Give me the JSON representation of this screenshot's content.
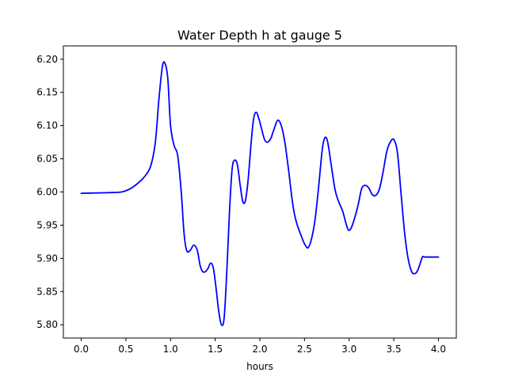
{
  "chart_data": {
    "type": "line",
    "title": "Water Depth h at gauge 5",
    "xlabel": "hours",
    "ylabel": "",
    "xlim": [
      -0.2,
      4.2
    ],
    "ylim": [
      5.78,
      6.22
    ],
    "xticks": [
      0.0,
      0.5,
      1.0,
      1.5,
      2.0,
      2.5,
      3.0,
      3.5,
      4.0
    ],
    "xtick_labels": [
      "0.0",
      "0.5",
      "1.0",
      "1.5",
      "2.0",
      "2.5",
      "3.0",
      "3.5",
      "4.0"
    ],
    "yticks": [
      5.8,
      5.85,
      5.9,
      5.95,
      6.0,
      6.05,
      6.1,
      6.15,
      6.2
    ],
    "ytick_labels": [
      "5.80",
      "5.85",
      "5.90",
      "5.95",
      "6.00",
      "6.05",
      "6.10",
      "6.15",
      "6.20"
    ],
    "grid": false,
    "series": [
      {
        "color": "#0000ff",
        "x": [
          0.0,
          0.3,
          0.45,
          0.55,
          0.65,
          0.72,
          0.78,
          0.83,
          0.87,
          0.91,
          0.94,
          0.97,
          1.0,
          1.04,
          1.08,
          1.12,
          1.15,
          1.18,
          1.22,
          1.26,
          1.3,
          1.33,
          1.36,
          1.39,
          1.42,
          1.45,
          1.48,
          1.51,
          1.54,
          1.57,
          1.6,
          1.63,
          1.66,
          1.69,
          1.72,
          1.75,
          1.78,
          1.81,
          1.84,
          1.87,
          1.9,
          1.93,
          1.96,
          1.99,
          2.02,
          2.05,
          2.08,
          2.12,
          2.16,
          2.2,
          2.24,
          2.28,
          2.32,
          2.36,
          2.39,
          2.42,
          2.46,
          2.5,
          2.54,
          2.58,
          2.62,
          2.66,
          2.7,
          2.73,
          2.76,
          2.8,
          2.84,
          2.87,
          2.9,
          2.93,
          2.96,
          2.99,
          3.02,
          3.06,
          3.1,
          3.14,
          3.18,
          3.22,
          3.26,
          3.3,
          3.34,
          3.38,
          3.42,
          3.46,
          3.5,
          3.54,
          3.58,
          3.62,
          3.66,
          3.7,
          3.73,
          3.76,
          3.79,
          3.82,
          3.85,
          3.88,
          3.91,
          3.94,
          3.97,
          4.0
        ],
        "y": [
          5.998,
          5.999,
          6.0,
          6.005,
          6.015,
          6.025,
          6.04,
          6.075,
          6.14,
          6.19,
          6.193,
          6.17,
          6.1,
          6.07,
          6.055,
          6.0,
          5.94,
          5.912,
          5.912,
          5.92,
          5.912,
          5.89,
          5.88,
          5.88,
          5.885,
          5.893,
          5.885,
          5.855,
          5.82,
          5.8,
          5.81,
          5.88,
          5.97,
          6.035,
          6.048,
          6.04,
          6.01,
          5.985,
          5.988,
          6.02,
          6.07,
          6.11,
          6.12,
          6.11,
          6.095,
          6.08,
          6.075,
          6.08,
          6.095,
          6.108,
          6.1,
          6.075,
          6.035,
          5.99,
          5.965,
          5.95,
          5.935,
          5.922,
          5.916,
          5.93,
          5.96,
          6.01,
          6.065,
          6.082,
          6.075,
          6.04,
          6.005,
          5.99,
          5.98,
          5.97,
          5.955,
          5.943,
          5.945,
          5.96,
          5.98,
          6.005,
          6.01,
          6.006,
          5.996,
          5.995,
          6.005,
          6.03,
          6.06,
          6.075,
          6.079,
          6.06,
          6.0,
          5.94,
          5.9,
          5.88,
          5.877,
          5.88,
          5.89,
          5.902,
          5.902,
          5.902,
          5.902,
          5.902,
          5.902,
          5.902
        ]
      }
    ]
  }
}
